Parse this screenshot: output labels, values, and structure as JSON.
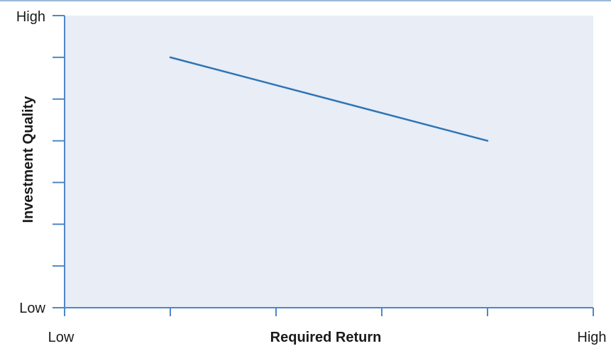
{
  "chart_data": {
    "type": "line",
    "xlabel": "Required Return",
    "ylabel": "Investment Quality",
    "x_tick_labels": {
      "low": "Low",
      "high": "High"
    },
    "y_tick_labels": {
      "low": "Low",
      "high": "High"
    },
    "xlim": [
      0,
      5
    ],
    "ylim": [
      0,
      7
    ],
    "x_ticks": [
      0,
      1,
      2,
      3,
      4,
      5
    ],
    "y_ticks": [
      0,
      1,
      2,
      3,
      4,
      5,
      6,
      7
    ],
    "grid": false,
    "series": [
      {
        "x": [
          1,
          4
        ],
        "y": [
          6,
          4
        ]
      }
    ],
    "colors": {
      "plot_background": "#e8edf6",
      "axis": "#4f87c5",
      "line": "#2e74b5",
      "text": "#1a1a1a"
    }
  }
}
